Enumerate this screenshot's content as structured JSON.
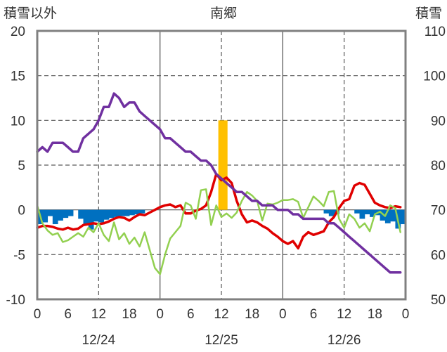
{
  "chart_data": {
    "type": "line",
    "title": "南郷",
    "left_axis_label": "積雪以外",
    "right_axis_label": "積雪",
    "left_ylim": [
      -10,
      20
    ],
    "left_ticks": [
      "20",
      "15",
      "10",
      "5",
      "0",
      "-5",
      "-10"
    ],
    "right_ylim": [
      50,
      110
    ],
    "right_ticks": [
      "110",
      "100",
      "90",
      "80",
      "70",
      "60",
      "50"
    ],
    "x_range_hours": [
      0,
      72
    ],
    "x_tick_hours": [
      0,
      6,
      12,
      18,
      24,
      30,
      36,
      42,
      48,
      54,
      60,
      66,
      72
    ],
    "x_ticks": [
      "0",
      "6",
      "12",
      "18",
      "0",
      "6",
      "12",
      "18",
      "0",
      "6",
      "12",
      "18",
      "0"
    ],
    "date_ticks": [
      {
        "hour": 12,
        "label": "12/24"
      },
      {
        "hour": 36,
        "label": "12/25"
      },
      {
        "hour": 60,
        "label": "12/26"
      }
    ],
    "grid": {
      "dashed_hours": [
        12,
        36,
        60
      ],
      "solid_hours": [
        24,
        48
      ]
    },
    "colors": {
      "frame": "#808080",
      "grid": "#595959",
      "orange_bar": "#FFC000",
      "blue_bar": "#0070C0",
      "red": "#E00000",
      "green": "#92D050",
      "purple": "#7030A0"
    },
    "orange_bars": [
      {
        "hour": 37,
        "value": 10
      }
    ],
    "blue_bars": [
      [
        0,
        -1.6
      ],
      [
        1,
        -1.4
      ],
      [
        2,
        -0.7
      ],
      [
        3,
        -1.6
      ],
      [
        4,
        -1.2
      ],
      [
        5,
        -0.9
      ],
      [
        6,
        -0.7
      ],
      [
        8,
        -1.0
      ],
      [
        9,
        -1.6
      ],
      [
        10,
        -2.2
      ],
      [
        11,
        -1.3
      ],
      [
        12,
        -1.4
      ],
      [
        13,
        -1.1
      ],
      [
        14,
        -0.9
      ],
      [
        15,
        -0.8
      ],
      [
        16,
        -0.7
      ],
      [
        17,
        -0.7
      ],
      [
        18,
        -0.6
      ],
      [
        19,
        -0.5
      ],
      [
        20,
        -0.4
      ],
      [
        56,
        -0.4
      ],
      [
        57,
        -0.7
      ],
      [
        58,
        -0.5
      ],
      [
        62,
        -0.4
      ],
      [
        63,
        -1.0
      ],
      [
        64,
        -0.5
      ],
      [
        65,
        -0.8
      ],
      [
        66,
        -0.6
      ],
      [
        67,
        -1.2
      ],
      [
        68,
        -1.5
      ],
      [
        69,
        -1.3
      ],
      [
        70,
        -2.1
      ],
      [
        71,
        -1.6
      ]
    ],
    "series": [
      {
        "color": "red",
        "values": [
          [
            0,
            -2.0
          ],
          [
            1,
            -1.8
          ],
          [
            2,
            -1.8
          ],
          [
            3,
            -1.9
          ],
          [
            4,
            -2.1
          ],
          [
            5,
            -2.2
          ],
          [
            6,
            -2.0
          ],
          [
            7,
            -2.2
          ],
          [
            8,
            -2.1
          ],
          [
            9,
            -1.7
          ],
          [
            10,
            -1.6
          ],
          [
            11,
            -1.5
          ],
          [
            12,
            -1.6
          ],
          [
            13,
            -1.5
          ],
          [
            14,
            -1.3
          ],
          [
            15,
            -1.0
          ],
          [
            16,
            -0.8
          ],
          [
            17,
            -0.9
          ],
          [
            18,
            -1.2
          ],
          [
            19,
            -0.8
          ],
          [
            20,
            -0.5
          ],
          [
            21,
            -0.6
          ],
          [
            22,
            -0.3
          ],
          [
            23,
            0.0
          ],
          [
            24,
            0.3
          ],
          [
            25,
            0.5
          ],
          [
            26,
            0.6
          ],
          [
            27,
            0.3
          ],
          [
            28,
            0.5
          ],
          [
            29,
            -0.4
          ],
          [
            30,
            -0.4
          ],
          [
            31,
            -0.1
          ],
          [
            32,
            0.1
          ],
          [
            33,
            0.5
          ],
          [
            34,
            2.0
          ],
          [
            35,
            4.0
          ],
          [
            36,
            3.3
          ],
          [
            37,
            3.6
          ],
          [
            38,
            3.0
          ],
          [
            39,
            1.0
          ],
          [
            40,
            -0.5
          ],
          [
            41,
            -1.4
          ],
          [
            42,
            -1.2
          ],
          [
            43,
            -1.4
          ],
          [
            44,
            -1.8
          ],
          [
            45,
            -2.1
          ],
          [
            46,
            -2.6
          ],
          [
            47,
            -3.0
          ],
          [
            48,
            -3.5
          ],
          [
            49,
            -3.8
          ],
          [
            50,
            -3.5
          ],
          [
            51,
            -4.3
          ],
          [
            52,
            -3.0
          ],
          [
            53,
            -2.5
          ],
          [
            54,
            -2.8
          ],
          [
            55,
            -2.6
          ],
          [
            56,
            -2.4
          ],
          [
            57,
            -1.4
          ],
          [
            58,
            -0.8
          ],
          [
            59,
            0.2
          ],
          [
            60,
            1.0
          ],
          [
            61,
            1.2
          ],
          [
            62,
            2.7
          ],
          [
            63,
            3.0
          ],
          [
            64,
            2.8
          ],
          [
            65,
            1.8
          ],
          [
            66,
            0.8
          ],
          [
            67,
            0.5
          ],
          [
            68,
            0.3
          ],
          [
            69,
            0.2
          ],
          [
            70,
            0.4
          ],
          [
            71,
            0.3
          ]
        ]
      },
      {
        "color": "green",
        "values": [
          [
            0,
            0.5
          ],
          [
            1,
            -1.5
          ],
          [
            2,
            -2.3
          ],
          [
            3,
            -2.8
          ],
          [
            4,
            -2.6
          ],
          [
            5,
            -3.6
          ],
          [
            6,
            -3.4
          ],
          [
            7,
            -3.0
          ],
          [
            8,
            -2.6
          ],
          [
            9,
            -3.0
          ],
          [
            10,
            -2.0
          ],
          [
            11,
            -2.5
          ],
          [
            12,
            -1.5
          ],
          [
            13,
            -2.8
          ],
          [
            14,
            -3.5
          ],
          [
            15,
            -1.4
          ],
          [
            16,
            -3.3
          ],
          [
            17,
            -2.6
          ],
          [
            18,
            -3.8
          ],
          [
            19,
            -3.1
          ],
          [
            20,
            -4.1
          ],
          [
            21,
            -2.5
          ],
          [
            22,
            -4.5
          ],
          [
            23,
            -6.5
          ],
          [
            24,
            -7.2
          ],
          [
            25,
            -5.0
          ],
          [
            26,
            -3.2
          ],
          [
            27,
            -2.5
          ],
          [
            28,
            -1.8
          ],
          [
            29,
            0.8
          ],
          [
            30,
            0.5
          ],
          [
            31,
            -1.0
          ],
          [
            32,
            2.2
          ],
          [
            33,
            2.3
          ],
          [
            34,
            -1.7
          ],
          [
            35,
            0.5
          ],
          [
            36,
            -0.8
          ],
          [
            37,
            -0.4
          ],
          [
            38,
            -0.9
          ],
          [
            39,
            -0.3
          ],
          [
            40,
            1.0
          ],
          [
            41,
            2.0
          ],
          [
            42,
            1.6
          ],
          [
            43,
            1.0
          ],
          [
            44,
            -1.2
          ],
          [
            45,
            0.7
          ],
          [
            46,
            0.6
          ],
          [
            47,
            0.8
          ],
          [
            48,
            1.1
          ],
          [
            49,
            1.1
          ],
          [
            50,
            1.2
          ],
          [
            51,
            0.9
          ],
          [
            52,
            -0.9
          ],
          [
            53,
            0.3
          ],
          [
            54,
            1.5
          ],
          [
            55,
            1.0
          ],
          [
            56,
            0.4
          ],
          [
            57,
            2.0
          ],
          [
            58,
            2.1
          ],
          [
            59,
            -1.0
          ],
          [
            60,
            -2.0
          ],
          [
            61,
            -0.5
          ],
          [
            62,
            -1.0
          ],
          [
            63,
            -2.0
          ],
          [
            64,
            -1.5
          ],
          [
            65,
            -2.4
          ],
          [
            66,
            -0.5
          ],
          [
            67,
            -0.2
          ],
          [
            68,
            -0.7
          ],
          [
            69,
            0.5
          ],
          [
            70,
            0.2
          ],
          [
            71,
            -2.5
          ]
        ]
      },
      {
        "color": "purple",
        "values": [
          [
            0,
            6.5
          ],
          [
            1,
            7.0
          ],
          [
            2,
            6.5
          ],
          [
            3,
            7.5
          ],
          [
            4,
            7.5
          ],
          [
            5,
            7.5
          ],
          [
            6,
            7.0
          ],
          [
            7,
            6.5
          ],
          [
            8,
            6.5
          ],
          [
            9,
            8.0
          ],
          [
            10,
            8.5
          ],
          [
            11,
            9.0
          ],
          [
            12,
            10.0
          ],
          [
            13,
            11.5
          ],
          [
            14,
            11.5
          ],
          [
            15,
            13.0
          ],
          [
            16,
            12.5
          ],
          [
            17,
            11.5
          ],
          [
            18,
            12.0
          ],
          [
            19,
            12.0
          ],
          [
            20,
            11.0
          ],
          [
            21,
            10.5
          ],
          [
            22,
            10.0
          ],
          [
            23,
            9.5
          ],
          [
            24,
            9.0
          ],
          [
            25,
            8.0
          ],
          [
            26,
            8.0
          ],
          [
            27,
            7.5
          ],
          [
            28,
            7.0
          ],
          [
            29,
            6.5
          ],
          [
            30,
            6.5
          ],
          [
            31,
            6.0
          ],
          [
            32,
            5.5
          ],
          [
            33,
            5.5
          ],
          [
            34,
            5.0
          ],
          [
            35,
            4.0
          ],
          [
            36,
            3.5
          ],
          [
            37,
            3.0
          ],
          [
            38,
            2.5
          ],
          [
            39,
            2.0
          ],
          [
            40,
            2.0
          ],
          [
            41,
            1.5
          ],
          [
            42,
            1.0
          ],
          [
            43,
            1.0
          ],
          [
            44,
            0.5
          ],
          [
            45,
            0.5
          ],
          [
            46,
            0.5
          ],
          [
            47,
            0.0
          ],
          [
            48,
            0.0
          ],
          [
            49,
            0.0
          ],
          [
            50,
            -0.5
          ],
          [
            51,
            -0.5
          ],
          [
            52,
            -1.0
          ],
          [
            53,
            -1.0
          ],
          [
            54,
            -1.0
          ],
          [
            55,
            -1.0
          ],
          [
            56,
            -1.0
          ],
          [
            57,
            -1.5
          ],
          [
            58,
            -1.5
          ],
          [
            59,
            -2.0
          ],
          [
            60,
            -2.5
          ],
          [
            61,
            -3.0
          ],
          [
            62,
            -3.5
          ],
          [
            63,
            -4.0
          ],
          [
            64,
            -4.5
          ],
          [
            65,
            -5.0
          ],
          [
            66,
            -5.5
          ],
          [
            67,
            -6.0
          ],
          [
            68,
            -6.5
          ],
          [
            69,
            -7.0
          ],
          [
            70,
            -7.0
          ],
          [
            71,
            -7.0
          ]
        ]
      }
    ]
  }
}
